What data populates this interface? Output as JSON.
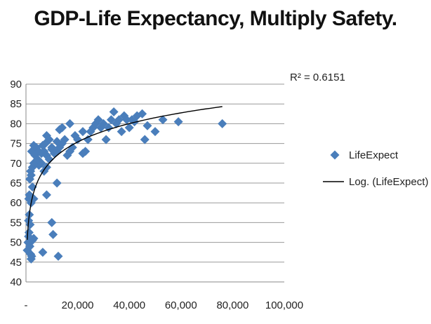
{
  "chart_data": {
    "type": "scatter",
    "title": "GDP-Life Expectancy, Multiply Safety.",
    "xlim": [
      0,
      100000
    ],
    "ylim": [
      40,
      90
    ],
    "x_ticks": [
      "-",
      "20,000",
      "40,000",
      "60,000",
      "80,000",
      "100,000"
    ],
    "y_ticks": [
      "40",
      "45",
      "50",
      "55",
      "60",
      "65",
      "70",
      "75",
      "80",
      "85",
      "90"
    ],
    "grid": "horizontal",
    "legend_position": "right",
    "series": [
      {
        "name": "LifeExpect",
        "color": "#4a7ebb",
        "marker": "diamond",
        "points": [
          [
            500,
            48
          ],
          [
            800,
            50
          ],
          [
            1000,
            51.5
          ],
          [
            1200,
            52.5
          ],
          [
            1500,
            49
          ],
          [
            1800,
            47
          ],
          [
            2000,
            45.8
          ],
          [
            2200,
            46.5
          ],
          [
            1000,
            55.5
          ],
          [
            1300,
            57
          ],
          [
            2500,
            50.5
          ],
          [
            3000,
            51
          ],
          [
            1600,
            54.5
          ],
          [
            1100,
            61
          ],
          [
            1300,
            62
          ],
          [
            2000,
            60
          ],
          [
            2500,
            64
          ],
          [
            3000,
            61
          ],
          [
            1500,
            66
          ],
          [
            2000,
            67
          ],
          [
            1800,
            68
          ],
          [
            2500,
            69
          ],
          [
            3000,
            70
          ],
          [
            3500,
            72
          ],
          [
            2200,
            73
          ],
          [
            3000,
            74.5
          ],
          [
            4000,
            74
          ],
          [
            5000,
            73
          ],
          [
            6000,
            72.5
          ],
          [
            7000,
            73
          ],
          [
            8000,
            72
          ],
          [
            9000,
            71
          ],
          [
            6000,
            70
          ],
          [
            7000,
            68
          ],
          [
            8000,
            69
          ],
          [
            5000,
            69.5
          ],
          [
            4500,
            71
          ],
          [
            6500,
            74.5
          ],
          [
            7500,
            75
          ],
          [
            8000,
            77
          ],
          [
            9000,
            76
          ],
          [
            10000,
            74
          ],
          [
            11000,
            72.5
          ],
          [
            12000,
            73
          ],
          [
            13000,
            74
          ],
          [
            14000,
            75
          ],
          [
            15000,
            76
          ],
          [
            10000,
            73.5
          ],
          [
            12000,
            75.5
          ],
          [
            13000,
            78.5
          ],
          [
            14000,
            79
          ],
          [
            16000,
            72
          ],
          [
            17000,
            73
          ],
          [
            18000,
            74
          ],
          [
            19000,
            77
          ],
          [
            20000,
            76
          ],
          [
            22000,
            78
          ],
          [
            22000,
            72.5
          ],
          [
            23000,
            73
          ],
          [
            24000,
            76
          ],
          [
            25000,
            78
          ],
          [
            26000,
            79
          ],
          [
            27000,
            80
          ],
          [
            28000,
            81
          ],
          [
            29000,
            79
          ],
          [
            30000,
            80
          ],
          [
            31000,
            76
          ],
          [
            32000,
            79
          ],
          [
            33000,
            81
          ],
          [
            34000,
            83
          ],
          [
            35000,
            80
          ],
          [
            36000,
            81
          ],
          [
            37000,
            78
          ],
          [
            38000,
            82
          ],
          [
            39000,
            81
          ],
          [
            40000,
            79
          ],
          [
            41000,
            81
          ],
          [
            42000,
            80.5
          ],
          [
            43000,
            82
          ],
          [
            45000,
            82.5
          ],
          [
            46000,
            76
          ],
          [
            47000,
            79.5
          ],
          [
            50000,
            78
          ],
          [
            53000,
            81
          ],
          [
            59000,
            80.5
          ],
          [
            76000,
            80
          ],
          [
            8000,
            62
          ],
          [
            10000,
            55
          ],
          [
            10500,
            52
          ],
          [
            12000,
            65
          ],
          [
            12500,
            46.5
          ],
          [
            6500,
            47.5
          ],
          [
            17000,
            80
          ]
        ]
      },
      {
        "name": "Log. (LifeExpect)",
        "color": "#000000",
        "type": "trendline-log",
        "r2_label": "R² = 0.6151",
        "x_range": [
          500,
          76000
        ]
      }
    ]
  }
}
